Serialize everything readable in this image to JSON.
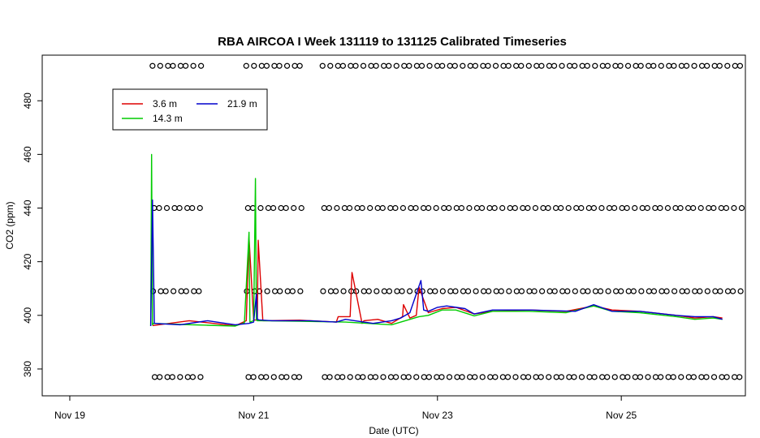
{
  "chart_data": {
    "type": "line",
    "title": "RBA AIRCOA I  Week 131119 to 131125  Calibrated Timeseries",
    "xlabel": "Date (UTC)",
    "ylabel": "CO2 (ppm)",
    "x_unit": "days since Nov 19 00:00 UTC",
    "xlim": [
      -0.3,
      7.35
    ],
    "ylim": [
      370,
      497
    ],
    "x_ticks": [
      {
        "value": 0,
        "label": "Nov 19"
      },
      {
        "value": 2,
        "label": "Nov 21"
      },
      {
        "value": 4,
        "label": "Nov 23"
      },
      {
        "value": 6,
        "label": "Nov 25"
      }
    ],
    "y_ticks": [
      {
        "value": 380,
        "label": "380"
      },
      {
        "value": 400,
        "label": "400"
      },
      {
        "value": 420,
        "label": "420"
      },
      {
        "value": 440,
        "label": "440"
      },
      {
        "value": 460,
        "label": "460"
      },
      {
        "value": 480,
        "label": "480"
      }
    ],
    "legend": {
      "position": "top-left",
      "entries": [
        {
          "name": "3.6 m",
          "color": "#dd0000"
        },
        {
          "name": "14.3 m",
          "color": "#00cc00"
        },
        {
          "name": "21.9 m",
          "color": "#0000cc"
        }
      ]
    },
    "series": [
      {
        "name": "3.6 m",
        "color": "#dd0000",
        "x": [
          0.9,
          1.3,
          1.8,
          1.92,
          1.95,
          2.0,
          2.04,
          2.05,
          2.1,
          2.5,
          2.9,
          2.92,
          3.05,
          3.07,
          3.18,
          3.2,
          3.35,
          3.5,
          3.62,
          3.63,
          3.7,
          3.77,
          3.8,
          3.9,
          4.05,
          4.2,
          4.4,
          4.6,
          5.0,
          5.4,
          5.7,
          5.9,
          6.2,
          6.6,
          6.8,
          7.0,
          7.1
        ],
        "y": [
          396.2,
          398.0,
          396.1,
          398.0,
          429.0,
          398.2,
          398.3,
          428.0,
          398.0,
          398.2,
          397.5,
          399.5,
          399.5,
          416.0,
          397.0,
          398.0,
          398.5,
          397.0,
          399.5,
          404.0,
          399.0,
          400.0,
          410.5,
          401.0,
          402.5,
          403.0,
          400.5,
          401.5,
          402.0,
          401.5,
          403.5,
          402.0,
          401.5,
          400.0,
          399.0,
          399.5,
          399.0
        ]
      },
      {
        "name": "14.3 m",
        "color": "#00cc00",
        "x": [
          0.88,
          0.89,
          0.9,
          0.91,
          1.2,
          1.5,
          1.8,
          1.9,
          1.95,
          1.96,
          2.0,
          2.02,
          2.03,
          2.04,
          2.1,
          2.5,
          3.0,
          3.5,
          3.8,
          3.9,
          4.05,
          4.2,
          4.4,
          4.6,
          5.0,
          5.4,
          5.7,
          5.9,
          6.2,
          6.6,
          6.8,
          7.0,
          7.1
        ],
        "y": [
          396.0,
          460.0,
          396.5,
          397.0,
          396.6,
          396.3,
          396.0,
          397.2,
          431.0,
          397.5,
          398.0,
          451.0,
          398.2,
          398.0,
          398.0,
          397.8,
          397.5,
          396.5,
          399.5,
          400.0,
          402.0,
          402.0,
          399.8,
          401.5,
          401.5,
          401.0,
          403.5,
          401.5,
          401.0,
          399.5,
          398.5,
          399.0,
          398.5
        ]
      },
      {
        "name": "21.9 m",
        "color": "#0000cc",
        "x": [
          0.88,
          0.9,
          0.92,
          1.2,
          1.5,
          1.8,
          1.95,
          2.0,
          2.03,
          2.04,
          2.06,
          2.2,
          2.6,
          2.9,
          3.0,
          3.1,
          3.3,
          3.5,
          3.6,
          3.7,
          3.82,
          3.85,
          3.9,
          4.0,
          4.1,
          4.3,
          4.4,
          4.6,
          5.0,
          5.5,
          5.7,
          5.9,
          6.2,
          6.6,
          6.8,
          7.0,
          7.1
        ],
        "y": [
          396.0,
          443.0,
          397.0,
          396.5,
          398.0,
          396.5,
          397.0,
          397.5,
          408.0,
          398.5,
          398.3,
          398.0,
          398.0,
          397.5,
          398.5,
          398.0,
          397.0,
          398.0,
          399.0,
          401.0,
          413.0,
          402.0,
          401.5,
          403.0,
          403.5,
          402.5,
          400.5,
          402.0,
          402.0,
          401.5,
          404.0,
          401.5,
          401.5,
          400.0,
          399.5,
          399.5,
          398.5
        ]
      }
    ],
    "calibration_markers": {
      "levels": [
        493,
        440,
        409,
        377
      ],
      "segments": [
        [
          0.9,
          1.45
        ],
        [
          1.92,
          2.5
        ],
        [
          2.75,
          7.35
        ]
      ]
    }
  }
}
